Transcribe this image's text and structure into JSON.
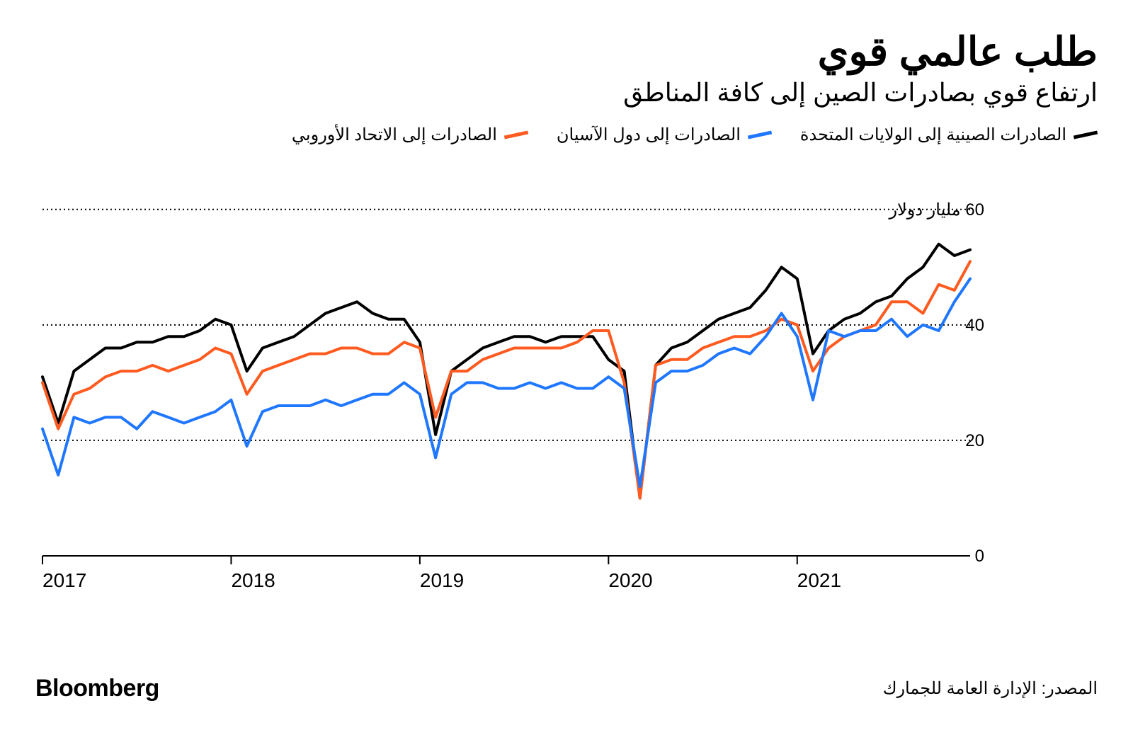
{
  "title": "طلب عالمي قوي",
  "subtitle": "ارتفاع قوي بصادرات الصين إلى كافة المناطق",
  "brand": "Bloomberg",
  "source": "المصدر: الإدارة العامة للجمارك",
  "chart": {
    "type": "line",
    "background_color": "#ffffff",
    "grid_color": "#000000",
    "grid_dash": "2,4",
    "line_width": 4,
    "x_domain_start": 0,
    "x_domain_end": 59,
    "ylim": [
      0,
      65
    ],
    "y_ticks": [
      0,
      20,
      40,
      60
    ],
    "y_tick_labels": [
      "0",
      "20",
      "40",
      "60 مليار دولار"
    ],
    "y_axis_side": "right",
    "y_label_fontsize": 24,
    "x_ticks": [
      {
        "pos": 0,
        "label": "2017"
      },
      {
        "pos": 12,
        "label": "2018"
      },
      {
        "pos": 24,
        "label": "2019"
      },
      {
        "pos": 36,
        "label": "2020"
      },
      {
        "pos": 48,
        "label": "2021"
      }
    ],
    "x_label_fontsize": 28,
    "axis_color": "#000000",
    "axis_width": 2,
    "legend": [
      {
        "label": "الصادرات الصينية إلى الولايات المتحدة",
        "color": "#000000"
      },
      {
        "label": "الصادرات إلى دول الآسيان",
        "color": "#1f77ff"
      },
      {
        "label": "الصادرات إلى الاتحاد الأوروبي",
        "color": "#ff5a1f"
      }
    ],
    "series": [
      {
        "name": "الصادرات الصينية إلى الولايات المتحدة",
        "color": "#000000",
        "values": [
          31,
          23,
          32,
          34,
          36,
          36,
          37,
          37,
          38,
          38,
          39,
          41,
          40,
          32,
          36,
          37,
          38,
          40,
          42,
          43,
          44,
          42,
          41,
          41,
          37,
          21,
          32,
          34,
          36,
          37,
          38,
          38,
          37,
          38,
          38,
          38,
          34,
          32,
          10,
          33,
          36,
          37,
          39,
          41,
          42,
          43,
          46,
          50,
          48,
          35,
          39,
          41,
          42,
          44,
          45,
          48,
          50,
          54,
          52,
          53
        ]
      },
      {
        "name": "الصادرات إلى الاتحاد الأوروبي",
        "color": "#ff5a1f",
        "values": [
          30,
          22,
          28,
          29,
          31,
          32,
          32,
          33,
          32,
          33,
          34,
          36,
          35,
          28,
          32,
          33,
          34,
          35,
          35,
          36,
          36,
          35,
          35,
          37,
          36,
          24,
          32,
          32,
          34,
          35,
          36,
          36,
          36,
          36,
          37,
          39,
          39,
          30,
          10,
          33,
          34,
          34,
          36,
          37,
          38,
          38,
          39,
          41,
          40,
          32,
          36,
          38,
          39,
          40,
          44,
          44,
          42,
          47,
          46,
          51
        ]
      },
      {
        "name": "الصادرات إلى دول الآسيان",
        "color": "#1f77ff",
        "values": [
          22,
          14,
          24,
          23,
          24,
          24,
          22,
          25,
          24,
          23,
          24,
          25,
          27,
          19,
          25,
          26,
          26,
          26,
          27,
          26,
          27,
          28,
          28,
          30,
          28,
          17,
          28,
          30,
          30,
          29,
          29,
          30,
          29,
          30,
          29,
          29,
          31,
          29,
          12,
          30,
          32,
          32,
          33,
          35,
          36,
          35,
          38,
          42,
          38,
          27,
          39,
          38,
          39,
          39,
          41,
          38,
          40,
          39,
          44,
          48
        ]
      }
    ]
  }
}
